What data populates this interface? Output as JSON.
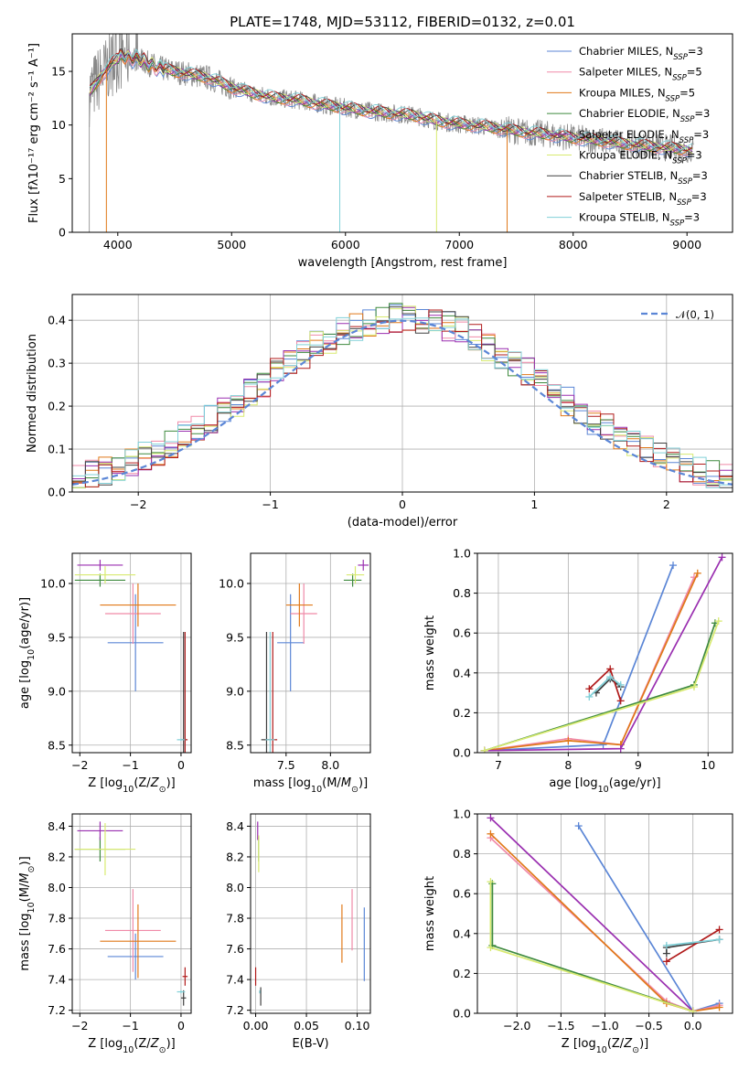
{
  "colors": {
    "Chabrier MILES": "#5b86d6",
    "Salpeter MILES": "#f08aa8",
    "Kroupa MILES": "#e07818",
    "Chabrier ELODIE": "#3e8a3e",
    "Salpeter ELODIE": "#9a2fb0",
    "Kroupa ELODIE": "#d8ea70",
    "Chabrier STELIB": "#404040",
    "Salpeter STELIB": "#b01a1a",
    "Kroupa STELIB": "#80d0d8"
  },
  "chart_data": [
    {
      "id": "spectrum",
      "type": "line",
      "title": "PLATE=1748, MJD=53112, FIBERID=0132, z=0.01",
      "xlabel": "wavelength [Angstrom, rest frame]",
      "ylabel": "Flux [fλ10⁻¹⁷ erg cm⁻² s⁻¹ A⁻¹]",
      "xlim": [
        3600,
        9400
      ],
      "ylim": [
        0,
        18.5
      ],
      "xticks": [
        4000,
        5000,
        6000,
        7000,
        8000,
        9000
      ],
      "yticks": [
        0,
        5,
        10,
        15
      ],
      "legend_position": "top-right",
      "legend": [
        {
          "name": "Chabrier MILES",
          "label": "Chabrier MILES, N",
          "sub": "SSP",
          "tail": "=3"
        },
        {
          "name": "Salpeter MILES",
          "label": "Salpeter MILES, N",
          "sub": "SSP",
          "tail": "=5"
        },
        {
          "name": "Kroupa MILES",
          "label": "Kroupa MILES, N",
          "sub": "SSP",
          "tail": "=5"
        },
        {
          "name": "Chabrier ELODIE",
          "label": "Chabrier ELODIE, N",
          "sub": "SSP",
          "tail": "=3"
        },
        {
          "name": "Salpeter ELODIE",
          "label": "Salpeter ELODIE, N",
          "sub": "SSP",
          "tail": "=3"
        },
        {
          "name": "Kroupa ELODIE",
          "label": "Kroupa ELODIE, N",
          "sub": "SSP",
          "tail": "=3"
        },
        {
          "name": "Chabrier STELIB",
          "label": "Chabrier STELIB, N",
          "sub": "SSP",
          "tail": "=3"
        },
        {
          "name": "Salpeter STELIB",
          "label": "Salpeter STELIB, N",
          "sub": "SSP",
          "tail": "=3"
        },
        {
          "name": "Kroupa STELIB",
          "label": "Kroupa STELIB, N",
          "sub": "SSP",
          "tail": "=3"
        }
      ],
      "continuum": [
        [
          3750,
          13.0
        ],
        [
          3850,
          14.5
        ],
        [
          3950,
          15.8
        ],
        [
          4050,
          16.5
        ],
        [
          4200,
          16.0
        ],
        [
          4400,
          15.2
        ],
        [
          4600,
          14.8
        ],
        [
          4800,
          14.4
        ],
        [
          5000,
          13.5
        ],
        [
          5200,
          12.9
        ],
        [
          5400,
          12.5
        ],
        [
          5600,
          12.3
        ],
        [
          5800,
          11.9
        ],
        [
          6000,
          11.6
        ],
        [
          6200,
          11.3
        ],
        [
          6400,
          11.1
        ],
        [
          6600,
          10.9
        ],
        [
          6800,
          10.4
        ],
        [
          7000,
          10.1
        ],
        [
          7200,
          9.9
        ],
        [
          7400,
          9.6
        ],
        [
          7600,
          9.3
        ],
        [
          7800,
          9.1
        ],
        [
          8000,
          8.8
        ],
        [
          8200,
          8.6
        ],
        [
          8400,
          8.3
        ],
        [
          8600,
          8.1
        ],
        [
          8800,
          7.9
        ],
        [
          9000,
          7.7
        ],
        [
          9060,
          7.6
        ]
      ],
      "dropouts": [
        {
          "x": 3900,
          "y": 0
        },
        {
          "x": 5950,
          "y": 0
        },
        {
          "x": 6800,
          "y": 0
        },
        {
          "x": 7420,
          "y": 0
        }
      ]
    },
    {
      "id": "residuals",
      "type": "step",
      "xlabel": "(data-model)/error",
      "ylabel": "Normed distribution",
      "xlim": [
        -2.5,
        2.5
      ],
      "ylim": [
        0,
        0.46
      ],
      "xticks": [
        -2,
        -1,
        0,
        1,
        2
      ],
      "yticks": [
        0.0,
        0.1,
        0.2,
        0.3,
        0.4
      ],
      "legend": "𝒩(0, 1)",
      "legend_position": "top-right",
      "bins": 50
    },
    {
      "id": "age-vs-z",
      "type": "scatter",
      "xlabel": "Z [log10(Z/Z⊙)]",
      "ylabel": "age [log10(age/yr)]",
      "xlim": [
        -2.15,
        0.2
      ],
      "ylim": [
        8.43,
        10.28
      ],
      "xticks": [
        -2,
        -1,
        0
      ],
      "yticks": [
        8.5,
        9.0,
        9.5,
        10.0
      ],
      "points": [
        {
          "name": "Chabrier MILES",
          "x": -0.9,
          "y": 9.45,
          "xerr": 0.55,
          "yerr": 0.45
        },
        {
          "name": "Salpeter MILES",
          "x": -0.95,
          "y": 9.72,
          "xerr": 0.55,
          "yerr": 0.28
        },
        {
          "name": "Kroupa MILES",
          "x": -0.85,
          "y": 9.8,
          "xerr": 0.75,
          "yerr": 0.2
        },
        {
          "name": "Chabrier ELODIE",
          "x": -1.6,
          "y": 10.03,
          "xerr": 0.5,
          "yerr": 0.06
        },
        {
          "name": "Salpeter ELODIE",
          "x": -1.6,
          "y": 10.17,
          "xerr": 0.45,
          "yerr": 0.05
        },
        {
          "name": "Kroupa ELODIE",
          "x": -1.5,
          "y": 10.08,
          "xerr": 0.6,
          "yerr": 0.08
        },
        {
          "name": "Chabrier STELIB",
          "x": 0.05,
          "y": 8.55,
          "xerr": 0.05,
          "yerr": 1.0
        },
        {
          "name": "Salpeter STELIB",
          "x": 0.08,
          "y": 8.55,
          "xerr": 0.05,
          "yerr": 1.0
        },
        {
          "name": "Kroupa STELIB",
          "x": 0.0,
          "y": 8.55,
          "xerr": 0.08,
          "yerr": 0.01
        }
      ]
    },
    {
      "id": "age-vs-mass",
      "type": "scatter",
      "xlabel": "mass [log10(M/M⊙)]",
      "ylabel": "",
      "xlim": [
        7.1,
        8.45
      ],
      "ylim": [
        8.43,
        10.28
      ],
      "xticks": [
        7.5,
        8.0
      ],
      "yticks": [
        8.5,
        9.0,
        9.5,
        10.0
      ],
      "points": [
        {
          "name": "Chabrier MILES",
          "x": 7.55,
          "y": 9.45,
          "xerr": 0.15,
          "yerr": 0.45
        },
        {
          "name": "Salpeter MILES",
          "x": 7.7,
          "y": 9.72,
          "xerr": 0.15,
          "yerr": 0.28
        },
        {
          "name": "Kroupa MILES",
          "x": 7.65,
          "y": 9.8,
          "xerr": 0.15,
          "yerr": 0.2
        },
        {
          "name": "Chabrier ELODIE",
          "x": 8.25,
          "y": 10.03,
          "xerr": 0.1,
          "yerr": 0.06
        },
        {
          "name": "Salpeter ELODIE",
          "x": 8.37,
          "y": 10.17,
          "xerr": 0.06,
          "yerr": 0.05
        },
        {
          "name": "Kroupa ELODIE",
          "x": 8.28,
          "y": 10.08,
          "xerr": 0.1,
          "yerr": 0.08
        },
        {
          "name": "Chabrier STELIB",
          "x": 7.28,
          "y": 8.55,
          "xerr": 0.06,
          "yerr": 1.0
        },
        {
          "name": "Salpeter STELIB",
          "x": 7.35,
          "y": 8.55,
          "xerr": 0.05,
          "yerr": 1.0
        },
        {
          "name": "Kroupa STELIB",
          "x": 7.32,
          "y": 8.55,
          "xerr": 0.05,
          "yerr": 1.0
        }
      ]
    },
    {
      "id": "weight-vs-age",
      "type": "line",
      "xlabel": "age [log10(age/yr)]",
      "ylabel": "mass weight",
      "xlim": [
        6.7,
        10.35
      ],
      "ylim": [
        0,
        1
      ],
      "xticks": [
        7,
        8,
        9,
        10
      ],
      "yticks": [
        0.0,
        0.2,
        0.4,
        0.6,
        0.8,
        1.0
      ],
      "series": [
        {
          "name": "Chabrier MILES",
          "x": [
            6.8,
            8.5,
            9.5
          ],
          "y": [
            0.01,
            0.04,
            0.94
          ]
        },
        {
          "name": "Salpeter MILES",
          "x": [
            6.8,
            8.0,
            8.75,
            9.8
          ],
          "y": [
            0.01,
            0.07,
            0.04,
            0.88
          ]
        },
        {
          "name": "Kroupa MILES",
          "x": [
            6.8,
            8.0,
            8.75,
            9.85
          ],
          "y": [
            0.01,
            0.06,
            0.04,
            0.9
          ]
        },
        {
          "name": "Chabrier ELODIE",
          "x": [
            6.8,
            9.8,
            10.1
          ],
          "y": [
            0.01,
            0.34,
            0.65
          ]
        },
        {
          "name": "Salpeter ELODIE",
          "x": [
            6.8,
            8.75,
            10.2
          ],
          "y": [
            0.01,
            0.02,
            0.98
          ]
        },
        {
          "name": "Kroupa ELODIE",
          "x": [
            6.8,
            9.8,
            10.15
          ],
          "y": [
            0.01,
            0.33,
            0.66
          ]
        },
        {
          "name": "Chabrier STELIB",
          "x": [
            8.4,
            8.6,
            8.75
          ],
          "y": [
            0.3,
            0.37,
            0.33
          ]
        },
        {
          "name": "Salpeter STELIB",
          "x": [
            8.3,
            8.6,
            8.75
          ],
          "y": [
            0.32,
            0.42,
            0.26
          ]
        },
        {
          "name": "Kroupa STELIB",
          "x": [
            8.3,
            8.6,
            8.75
          ],
          "y": [
            0.28,
            0.38,
            0.34
          ]
        }
      ]
    },
    {
      "id": "mass-vs-z",
      "type": "scatter",
      "xlabel": "Z [log10(Z/Z⊙)]",
      "ylabel": "mass [log10(M/M⊙)]",
      "xlim": [
        -2.15,
        0.2
      ],
      "ylim": [
        7.18,
        8.48
      ],
      "xticks": [
        -2,
        -1,
        0
      ],
      "yticks": [
        7.2,
        7.4,
        7.6,
        7.8,
        8.0,
        8.2,
        8.4
      ],
      "points": [
        {
          "name": "Chabrier MILES",
          "x": -0.9,
          "y": 7.55,
          "xerr": 0.55,
          "yerr": 0.15
        },
        {
          "name": "Salpeter MILES",
          "x": -0.95,
          "y": 7.72,
          "xerr": 0.55,
          "yerr": 0.27
        },
        {
          "name": "Kroupa MILES",
          "x": -0.85,
          "y": 7.65,
          "xerr": 0.75,
          "yerr": 0.24
        },
        {
          "name": "Chabrier ELODIE",
          "x": -1.6,
          "y": 8.25,
          "xerr": 0.5,
          "yerr": 0.08
        },
        {
          "name": "Salpeter ELODIE",
          "x": -1.6,
          "y": 8.37,
          "xerr": 0.45,
          "yerr": 0.06
        },
        {
          "name": "Kroupa ELODIE",
          "x": -1.5,
          "y": 8.25,
          "xerr": 0.6,
          "yerr": 0.17
        },
        {
          "name": "Chabrier STELIB",
          "x": 0.05,
          "y": 7.28,
          "xerr": 0.05,
          "yerr": 0.05
        },
        {
          "name": "Salpeter STELIB",
          "x": 0.08,
          "y": 7.42,
          "xerr": 0.05,
          "yerr": 0.06
        },
        {
          "name": "Kroupa STELIB",
          "x": 0.0,
          "y": 7.32,
          "xerr": 0.08,
          "yerr": 0.01
        }
      ]
    },
    {
      "id": "mass-vs-ebv",
      "type": "scatter",
      "xlabel": "E(B-V)",
      "ylabel": "",
      "xlim": [
        -0.005,
        0.113
      ],
      "ylim": [
        7.18,
        8.48
      ],
      "xticks": [
        0.0,
        0.05,
        0.1
      ],
      "yticks": [
        7.2,
        7.4,
        7.6,
        7.8,
        8.0,
        8.2,
        8.4
      ],
      "points": [
        {
          "name": "Chabrier MILES",
          "x": 0.107,
          "y": 7.63,
          "xerr": 0,
          "yerr": 0.24
        },
        {
          "name": "Salpeter MILES",
          "x": 0.095,
          "y": 7.79,
          "xerr": 0,
          "yerr": 0.2
        },
        {
          "name": "Kroupa MILES",
          "x": 0.085,
          "y": 7.7,
          "xerr": 0,
          "yerr": 0.19
        },
        {
          "name": "Chabrier ELODIE",
          "x": 0.003,
          "y": 8.25,
          "xerr": 0,
          "yerr": 0.08
        },
        {
          "name": "Salpeter ELODIE",
          "x": 0.002,
          "y": 8.37,
          "xerr": 0,
          "yerr": 0.06
        },
        {
          "name": "Kroupa ELODIE",
          "x": 0.003,
          "y": 8.22,
          "xerr": 0,
          "yerr": 0.12
        },
        {
          "name": "Chabrier STELIB",
          "x": 0.005,
          "y": 7.29,
          "xerr": 0,
          "yerr": 0.06
        },
        {
          "name": "Salpeter STELIB",
          "x": 0.0,
          "y": 7.42,
          "xerr": 0,
          "yerr": 0.06
        },
        {
          "name": "Kroupa STELIB",
          "x": 0.004,
          "y": 7.32,
          "xerr": 0,
          "yerr": 0.01
        }
      ]
    },
    {
      "id": "weight-vs-z",
      "type": "line",
      "xlabel": "Z [log10(Z/Z⊙)]",
      "ylabel": "mass weight",
      "xlim": [
        -2.45,
        0.45
      ],
      "ylim": [
        0,
        1
      ],
      "xticks": [
        -2.0,
        -1.5,
        -1.0,
        -0.5,
        0.0
      ],
      "yticks": [
        0.0,
        0.2,
        0.4,
        0.6,
        0.8,
        1.0
      ],
      "series": [
        {
          "name": "Chabrier MILES",
          "x": [
            -1.3,
            0.0,
            0.3
          ],
          "y": [
            0.94,
            0.01,
            0.05
          ]
        },
        {
          "name": "Salpeter MILES",
          "x": [
            -2.3,
            -0.3,
            0.0,
            0.3
          ],
          "y": [
            0.88,
            0.06,
            0.01,
            0.04
          ]
        },
        {
          "name": "Kroupa MILES",
          "x": [
            -2.3,
            -0.3,
            0.0,
            0.3
          ],
          "y": [
            0.9,
            0.05,
            0.01,
            0.03
          ]
        },
        {
          "name": "Chabrier ELODIE",
          "x": [
            -2.28,
            -2.28,
            0.0
          ],
          "y": [
            0.65,
            0.34,
            0.01
          ]
        },
        {
          "name": "Salpeter ELODIE",
          "x": [
            -2.3,
            0.0
          ],
          "y": [
            0.98,
            0.01
          ]
        },
        {
          "name": "Kroupa ELODIE",
          "x": [
            -2.3,
            -2.3,
            0.0
          ],
          "y": [
            0.66,
            0.33,
            0.01
          ]
        },
        {
          "name": "Chabrier STELIB",
          "x": [
            -0.3,
            -0.3,
            0.3
          ],
          "y": [
            0.3,
            0.33,
            0.37
          ]
        },
        {
          "name": "Salpeter STELIB",
          "x": [
            -0.3,
            0.3
          ],
          "y": [
            0.26,
            0.42
          ]
        },
        {
          "name": "Kroupa STELIB",
          "x": [
            -0.3,
            0.3
          ],
          "y": [
            0.34,
            0.37
          ]
        }
      ]
    }
  ]
}
